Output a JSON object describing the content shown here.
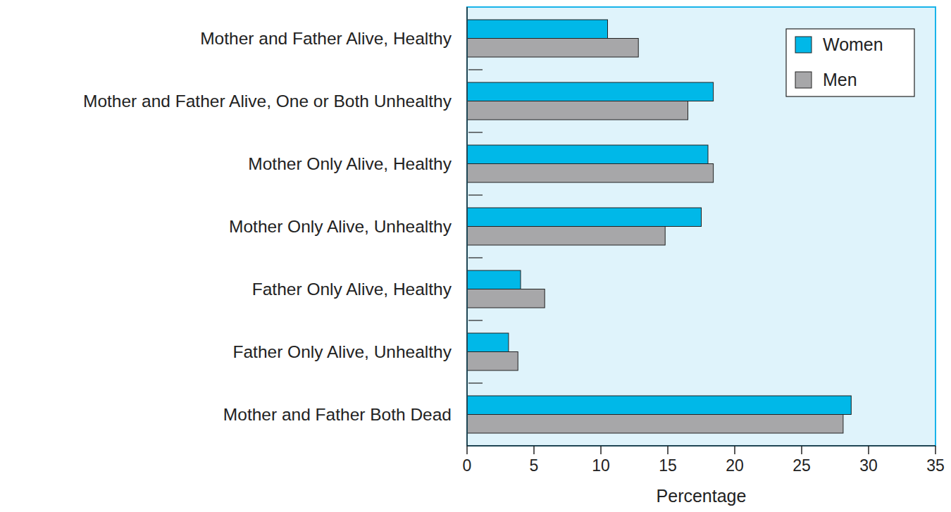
{
  "chart_data": {
    "type": "bar",
    "orientation": "horizontal",
    "x_label": "Percentage",
    "categories": [
      "Mother and Father Alive, Healthy",
      "Mother and Father Alive, One or Both Unhealthy",
      "Mother Only Alive, Healthy",
      "Mother Only Alive, Unhealthy",
      "Father Only Alive, Healthy",
      "Father Only Alive, Unhealthy",
      "Mother and Father Both Dead"
    ],
    "series": [
      {
        "name": "Women",
        "color": "#00b8e8",
        "values": [
          10.5,
          18.4,
          18.0,
          17.5,
          4.0,
          3.1,
          28.7
        ]
      },
      {
        "name": "Men",
        "color": "#a7a7a9",
        "values": [
          12.8,
          16.5,
          18.4,
          14.8,
          5.8,
          3.8,
          28.1
        ]
      }
    ],
    "xlim": [
      0,
      35
    ],
    "xticks": [
      0,
      5,
      10,
      15,
      20,
      25,
      30,
      35
    ],
    "grid": false,
    "legend": "top-right"
  }
}
